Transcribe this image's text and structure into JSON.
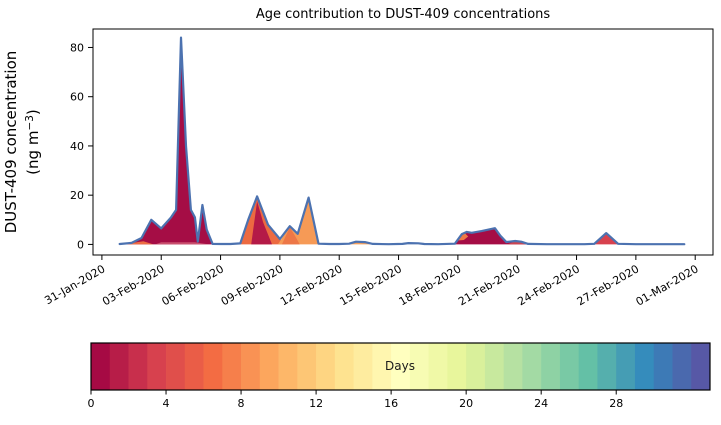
{
  "title": "Age contribution to DUST-409 concentrations",
  "y_axis": {
    "label_line1": "DUST-409 concentration",
    "label_line2_prefix": "(ng m",
    "label_exponent": "−3",
    "label_suffix": ")",
    "ticks": [
      0,
      20,
      40,
      60,
      80
    ],
    "lim": [
      -4.3,
      87.5
    ]
  },
  "x_axis": {
    "tick_days": [
      0,
      3,
      6,
      9,
      12,
      15,
      18,
      21,
      24,
      27,
      30
    ],
    "tick_labels": [
      "31-Jan-2020",
      "03-Feb-2020",
      "06-Feb-2020",
      "09-Feb-2020",
      "12-Feb-2020",
      "15-Feb-2020",
      "18-Feb-2020",
      "21-Feb-2020",
      "24-Feb-2020",
      "27-Feb-2020",
      "01-Mar-2020"
    ],
    "lim": [
      -0.45,
      30.9
    ]
  },
  "chart_data": {
    "type": "area",
    "title": "Age contribution to DUST-409 concentrations",
    "ylabel": "DUST-409 concentration (ng m−3)",
    "x_unit": "days since 31-Jan-2020",
    "ylim": [
      -4.3,
      87.5
    ],
    "grid": false,
    "line_color": "#4c72b0",
    "total_series": [
      [
        0.9,
        0.15
      ],
      [
        1.5,
        0.6
      ],
      [
        2.0,
        2.6
      ],
      [
        2.5,
        10
      ],
      [
        3.0,
        6.5
      ],
      [
        3.5,
        11
      ],
      [
        3.75,
        14
      ],
      [
        4.0,
        84
      ],
      [
        4.25,
        40
      ],
      [
        4.5,
        14
      ],
      [
        4.7,
        11
      ],
      [
        4.85,
        1.2
      ],
      [
        5.08,
        16
      ],
      [
        5.3,
        6
      ],
      [
        5.6,
        0.2
      ],
      [
        6.0,
        0.15
      ],
      [
        6.5,
        0.15
      ],
      [
        7.0,
        0.4
      ],
      [
        7.4,
        10
      ],
      [
        7.85,
        19.5
      ],
      [
        8.4,
        8
      ],
      [
        9.0,
        2.2
      ],
      [
        9.5,
        7.4
      ],
      [
        9.9,
        4.3
      ],
      [
        10.45,
        19
      ],
      [
        10.95,
        0.3
      ],
      [
        11.5,
        0.15
      ],
      [
        12.0,
        0.15
      ],
      [
        12.5,
        0.3
      ],
      [
        12.85,
        1.1
      ],
      [
        13.3,
        0.95
      ],
      [
        13.7,
        0.2
      ],
      [
        14.5,
        0.1
      ],
      [
        15.2,
        0.2
      ],
      [
        15.5,
        0.55
      ],
      [
        16.0,
        0.45
      ],
      [
        16.3,
        0.15
      ],
      [
        17.0,
        0.1
      ],
      [
        17.85,
        0.3
      ],
      [
        18.2,
        4.2
      ],
      [
        18.45,
        5.1
      ],
      [
        18.7,
        4.7
      ],
      [
        19.2,
        5.4
      ],
      [
        19.87,
        6.6
      ],
      [
        20.15,
        3.5
      ],
      [
        20.45,
        1.0
      ],
      [
        20.9,
        1.4
      ],
      [
        21.2,
        1.1
      ],
      [
        21.55,
        0.2
      ],
      [
        22.5,
        0.1
      ],
      [
        23.5,
        0.1
      ],
      [
        24.4,
        0.1
      ],
      [
        24.9,
        0.25
      ],
      [
        25.5,
        4.6
      ],
      [
        26.1,
        0.25
      ],
      [
        27.0,
        0.1
      ],
      [
        28.0,
        0.1
      ],
      [
        29.0,
        0.1
      ],
      [
        29.45,
        0.1
      ]
    ],
    "fill_regions": [
      {
        "name": "event1-fresh-dust",
        "color": "#a50d45",
        "points": [
          [
            0.9,
            0
          ],
          [
            1.5,
            0.5
          ],
          [
            2.0,
            2.5
          ],
          [
            2.5,
            10
          ],
          [
            3.0,
            6.5
          ],
          [
            3.5,
            11
          ],
          [
            3.75,
            14
          ],
          [
            4.0,
            84
          ],
          [
            4.25,
            40
          ],
          [
            4.5,
            14
          ],
          [
            4.7,
            11
          ],
          [
            4.85,
            1.2
          ],
          [
            5.08,
            16
          ],
          [
            5.3,
            6
          ],
          [
            5.6,
            0
          ]
        ]
      },
      {
        "name": "event1-aged-sliver",
        "color": "#ed6d44",
        "points": [
          [
            1.0,
            0
          ],
          [
            1.6,
            0.7
          ],
          [
            2.1,
            1.3
          ],
          [
            2.6,
            0
          ]
        ]
      },
      {
        "name": "event1-baseline-strip",
        "color": "#c9506e",
        "points": [
          [
            2.7,
            0
          ],
          [
            3.0,
            0.9
          ],
          [
            4.7,
            0.9
          ],
          [
            5.4,
            0
          ]
        ]
      },
      {
        "name": "event2-aged-base",
        "color": "#ec6a41",
        "points": [
          [
            7.0,
            0
          ],
          [
            7.4,
            10
          ],
          [
            7.85,
            19.5
          ],
          [
            8.4,
            8
          ],
          [
            9.0,
            2.2
          ],
          [
            9.3,
            0
          ]
        ]
      },
      {
        "name": "event2-fresh-core",
        "color": "#b41a47",
        "points": [
          [
            7.55,
            0
          ],
          [
            7.85,
            17.5
          ],
          [
            8.15,
            9
          ],
          [
            8.6,
            0
          ]
        ]
      },
      {
        "name": "event3-aged-bumps",
        "color": "#f69a56",
        "points": [
          [
            8.9,
            0
          ],
          [
            9.5,
            7.4
          ],
          [
            9.9,
            4.3
          ],
          [
            10.45,
            19
          ],
          [
            10.95,
            0
          ]
        ]
      },
      {
        "name": "event3-left-wedge",
        "color": "#ed7747",
        "points": [
          [
            9.1,
            0
          ],
          [
            9.5,
            7.0
          ],
          [
            9.8,
            3.0
          ],
          [
            10.0,
            0
          ]
        ]
      },
      {
        "name": "bump-13feb",
        "color": "#f5a05c",
        "points": [
          [
            12.5,
            0
          ],
          [
            12.85,
            1.0
          ],
          [
            13.3,
            0.9
          ],
          [
            13.7,
            0
          ]
        ]
      },
      {
        "name": "event4-fresh",
        "color": "#a50d45",
        "points": [
          [
            17.85,
            0
          ],
          [
            18.2,
            4.2
          ],
          [
            18.45,
            5.1
          ],
          [
            18.7,
            4.7
          ],
          [
            19.2,
            5.4
          ],
          [
            19.87,
            6.6
          ],
          [
            20.15,
            3.5
          ],
          [
            20.45,
            1.0
          ],
          [
            20.9,
            1.4
          ],
          [
            21.2,
            1.1
          ],
          [
            21.55,
            0
          ]
        ]
      },
      {
        "name": "event4-aged-cap",
        "color": "#ee7a45",
        "points": [
          [
            18.0,
            1.6
          ],
          [
            18.33,
            4.7
          ],
          [
            18.52,
            3.2
          ],
          [
            18.3,
            1.8
          ]
        ]
      },
      {
        "name": "event4-tail",
        "color": "#cc4450",
        "points": [
          [
            20.5,
            0
          ],
          [
            20.9,
            1.3
          ],
          [
            21.2,
            1.0
          ],
          [
            21.5,
            0
          ]
        ]
      },
      {
        "name": "peak-25feb",
        "color": "#d7414e",
        "points": [
          [
            24.9,
            0
          ],
          [
            25.5,
            4.6
          ],
          [
            26.1,
            0
          ]
        ]
      }
    ]
  },
  "colorbar": {
    "label": "Days",
    "ticks": [
      0,
      4,
      8,
      12,
      16,
      20,
      24,
      28
    ],
    "range": [
      0,
      33
    ],
    "segments": 33,
    "colormap_name": "Spectral",
    "colormap_anchors": [
      "#9e0142",
      "#d53e4f",
      "#f46d43",
      "#fdae61",
      "#fee08b",
      "#ffffbf",
      "#e6f598",
      "#abdda4",
      "#66c2a5",
      "#3288bd",
      "#5e4fa2"
    ]
  }
}
